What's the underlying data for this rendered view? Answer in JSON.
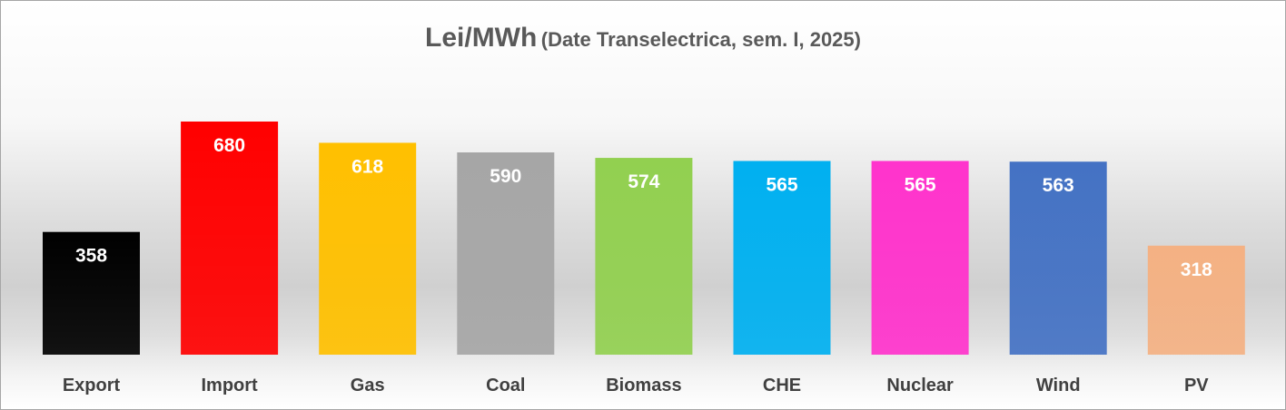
{
  "chart_data": {
    "type": "bar",
    "title": "Lei/MWh",
    "subtitle": "(Date Transelectrica, sem. I, 2025)",
    "categories": [
      "Export",
      "Import",
      "Gas",
      "Coal",
      "Biomass",
      "CHE",
      "Nuclear",
      "Wind",
      "PV"
    ],
    "values": [
      358,
      680,
      618,
      590,
      574,
      565,
      565,
      563,
      318
    ],
    "colors": [
      "#000000",
      "#ff0000",
      "#ffc000",
      "#a6a6a6",
      "#92d050",
      "#00b0f0",
      "#ff33cc",
      "#4472c4",
      "#f4b183"
    ],
    "label_colors": [
      "#ffffff",
      "#ffffff",
      "#ffffff",
      "#ffffff",
      "#ffffff",
      "#ffffff",
      "#ffffff",
      "#ffffff",
      "#ffffff"
    ],
    "xlabel": "",
    "ylabel": "",
    "ylim": [
      0,
      680
    ],
    "grid": false,
    "legend": "none",
    "data_labels": true
  }
}
